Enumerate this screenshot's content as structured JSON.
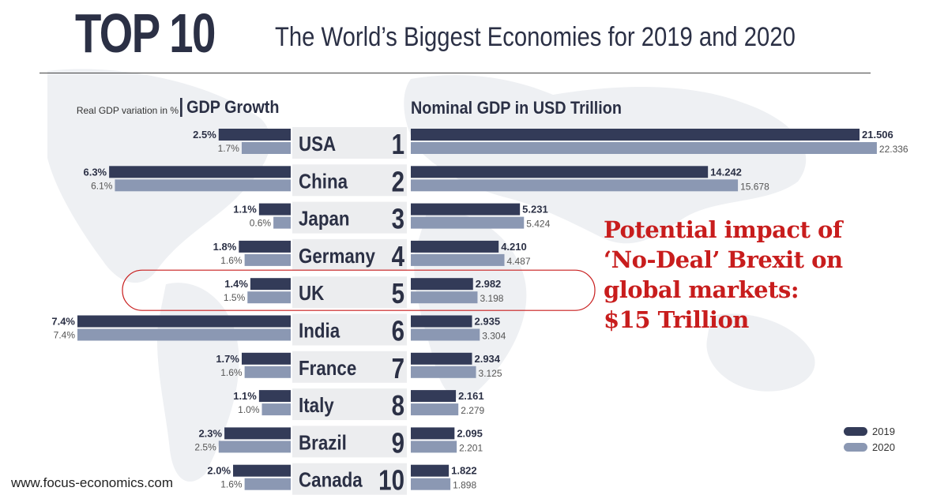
{
  "header": {
    "big_title": "TOP 10",
    "subtitle": "The World’s Biggest Economies for 2019 and 2020"
  },
  "chart_data": {
    "type": "bar",
    "left_panel": {
      "label_small": "Real GDP variation in %",
      "title": "GDP Growth"
    },
    "right_panel": {
      "title": "Nominal GDP in USD Trillion"
    },
    "categories": [
      "USA",
      "China",
      "Japan",
      "Germany",
      "UK",
      "India",
      "France",
      "Italy",
      "Brazil",
      "Canada"
    ],
    "ranks": [
      "1",
      "2",
      "3",
      "4",
      "5",
      "6",
      "7",
      "8",
      "9",
      "10"
    ],
    "gdp_growth": [
      {
        "name": "2019",
        "values": [
          2.5,
          6.3,
          1.1,
          1.8,
          1.4,
          7.4,
          1.7,
          1.1,
          2.3,
          2.0
        ],
        "labels": [
          "2.5%",
          "6.3%",
          "1.1%",
          "1.8%",
          "1.4%",
          "7.4%",
          "1.7%",
          "1.1%",
          "2.3%",
          "2.0%"
        ]
      },
      {
        "name": "2020",
        "values": [
          1.7,
          6.1,
          0.6,
          1.6,
          1.5,
          7.4,
          1.6,
          1.0,
          2.5,
          1.6
        ],
        "labels": [
          "1.7%",
          "6.1%",
          "0.6%",
          "1.6%",
          "1.5%",
          "7.4%",
          "1.6%",
          "1.0%",
          "2.5%",
          "1.6%"
        ]
      }
    ],
    "nominal_gdp": [
      {
        "name": "2019",
        "values": [
          21.506,
          14.242,
          5.231,
          4.21,
          2.982,
          2.935,
          2.934,
          2.161,
          2.095,
          1.822
        ],
        "labels": [
          "21.506",
          "14.242",
          "5.231",
          "4.210",
          "2.982",
          "2.935",
          "2.934",
          "2.161",
          "2.095",
          "1.822"
        ]
      },
      {
        "name": "2020",
        "values": [
          22.336,
          15.678,
          5.424,
          4.487,
          3.198,
          3.304,
          3.125,
          2.279,
          2.201,
          1.898
        ],
        "labels": [
          "22.336",
          "15.678",
          "5.424",
          "4.487",
          "3.198",
          "3.304",
          "3.125",
          "2.279",
          "2.201",
          "1.898"
        ]
      }
    ],
    "highlight": "UK",
    "legend": [
      "2019",
      "2020"
    ],
    "legend_placement": "bottom-right"
  },
  "annotation": {
    "lines": [
      "Potential impact of",
      "‘No-Deal’ Brexit on",
      "global markets:",
      "$15 Trillion"
    ]
  },
  "footer": {
    "url": "www.focus-economics.com"
  },
  "colors": {
    "series_2019": "#333b58",
    "series_2020": "#8b98b3",
    "annotation": "#c81d1d",
    "text": "#2b3045"
  }
}
